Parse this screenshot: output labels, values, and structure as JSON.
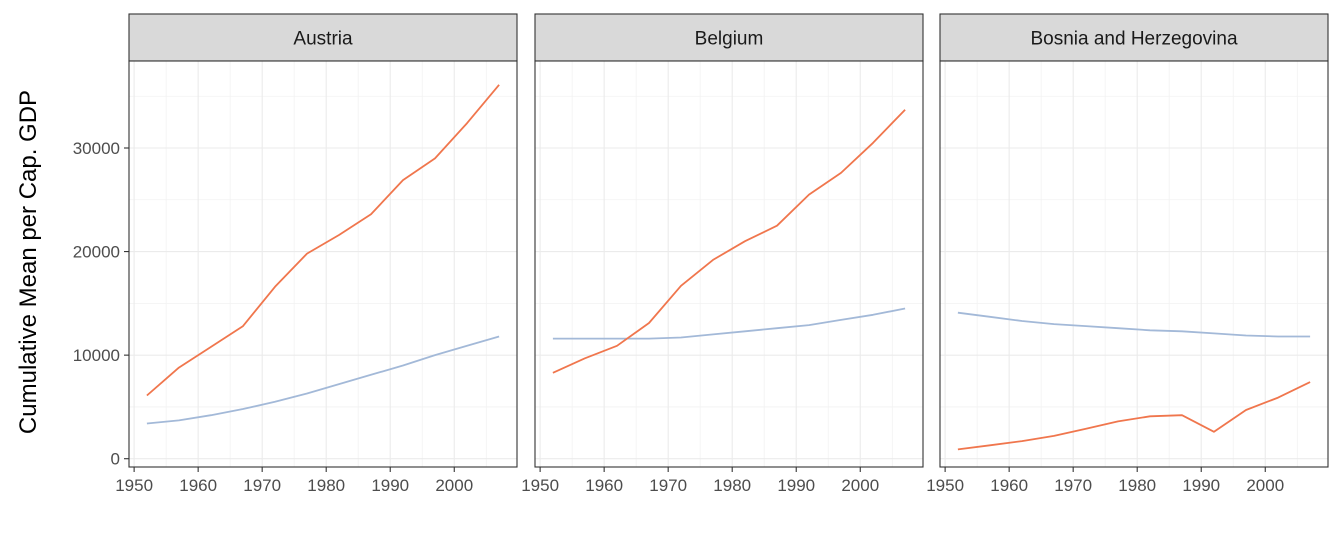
{
  "chart_data": {
    "type": "line",
    "ylabel": "Cumulative Mean per Cap. GDP",
    "xlabel": "",
    "xlim": [
      1949.2,
      2009.8
    ],
    "ylim": [
      -800,
      38400
    ],
    "x_ticks": [
      1950,
      1960,
      1970,
      1980,
      1990,
      2000
    ],
    "y_ticks": [
      0,
      10000,
      20000,
      30000
    ],
    "x_tick_labels": [
      "1950",
      "1960",
      "1970",
      "1980",
      "1990",
      "2000"
    ],
    "y_tick_labels": [
      "0",
      "10000",
      "20000",
      "30000"
    ],
    "x": [
      1952,
      1957,
      1962,
      1967,
      1972,
      1977,
      1982,
      1987,
      1992,
      1997,
      2002,
      2007
    ],
    "grid": true,
    "legend": "none",
    "colors": {
      "orange": "#F0764D",
      "blue": "#A3B9D8"
    },
    "panels": [
      {
        "title": "Austria",
        "series": [
          {
            "color": "orange",
            "values": [
              6100,
              8800,
              10800,
              12800,
              16600,
              19800,
              21600,
              23600,
              26900,
              29000,
              32400,
              36100
            ]
          },
          {
            "color": "blue",
            "values": [
              3400,
              3700,
              4200,
              4800,
              5500,
              6300,
              7200,
              8100,
              9000,
              10000,
              10900,
              11800
            ]
          }
        ]
      },
      {
        "title": "Belgium",
        "series": [
          {
            "color": "orange",
            "values": [
              8300,
              9700,
              10900,
              13100,
              16700,
              19200,
              21000,
              22500,
              25500,
              27600,
              30500,
              33700
            ]
          },
          {
            "color": "blue",
            "values": [
              11600,
              11600,
              11600,
              11600,
              11700,
              12000,
              12300,
              12600,
              12900,
              13400,
              13900,
              14500
            ]
          }
        ]
      },
      {
        "title": "Bosnia and Herzegovina",
        "series": [
          {
            "color": "orange",
            "values": [
              900,
              1300,
              1700,
              2200,
              2900,
              3600,
              4100,
              4200,
              2600,
              4700,
              5900,
              7400
            ]
          },
          {
            "color": "blue",
            "values": [
              14100,
              13700,
              13300,
              13000,
              12800,
              12600,
              12400,
              12300,
              12100,
              11900,
              11800,
              11800
            ]
          }
        ]
      }
    ]
  }
}
